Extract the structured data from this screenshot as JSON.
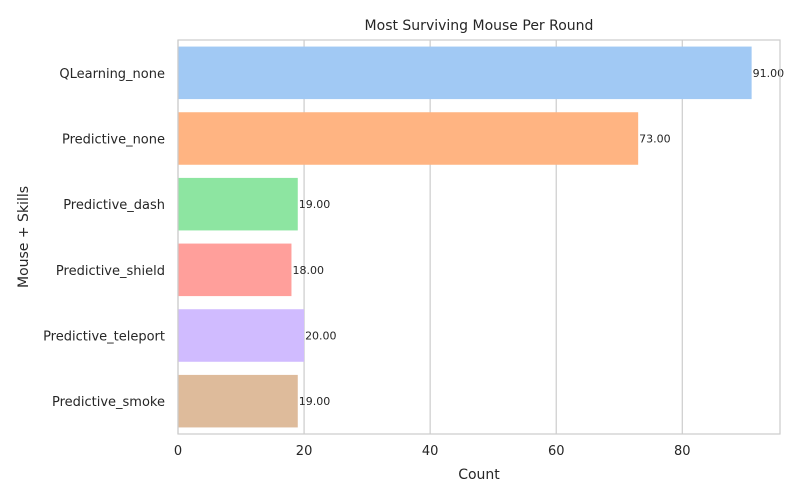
{
  "chart_data": {
    "type": "bar",
    "orientation": "horizontal",
    "title": "Most Surviving Mouse Per Round",
    "xlabel": "Count",
    "ylabel": "Mouse + Skills",
    "categories": [
      "QLearning_none",
      "Predictive_none",
      "Predictive_dash",
      "Predictive_shield",
      "Predictive_teleport",
      "Predictive_smoke"
    ],
    "values": [
      91,
      73,
      19,
      18,
      20,
      19
    ],
    "value_labels": [
      "91.00",
      "73.00",
      "19.00",
      "18.00",
      "20.00",
      "19.00"
    ],
    "colors": [
      "#a1c9f4",
      "#ffb482",
      "#8de5a1",
      "#ff9f9b",
      "#d0bbff",
      "#debb9b"
    ],
    "xlim": [
      0,
      95.5
    ],
    "xticks": [
      0,
      20,
      40,
      60,
      80
    ],
    "xtick_labels": [
      "0",
      "20",
      "40",
      "60",
      "80"
    ],
    "grid": "vertical",
    "legend": "none"
  }
}
